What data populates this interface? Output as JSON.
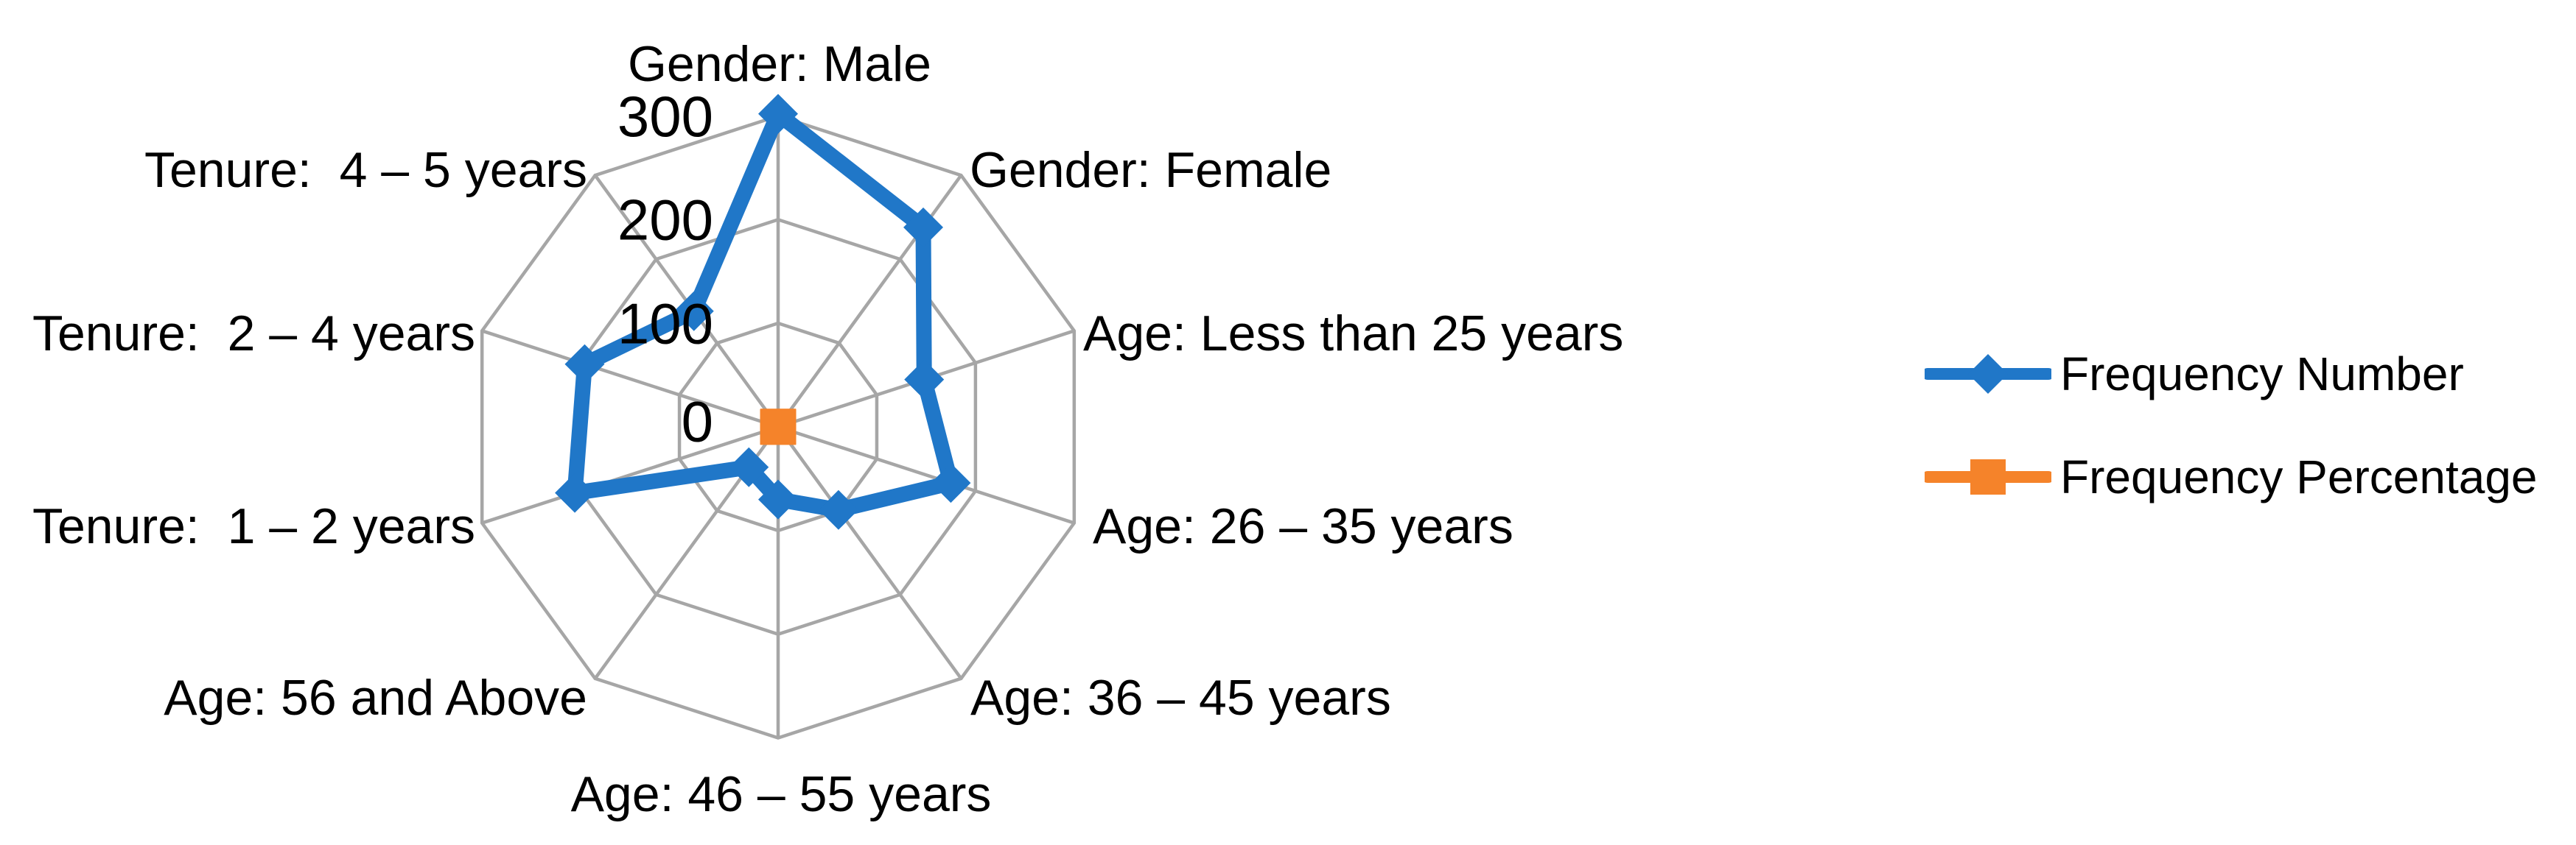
{
  "chart_data": {
    "type": "radar",
    "title": "",
    "categories": [
      "Gender: Male",
      "Gender: Female",
      "Age: Less than 25 years",
      "Age: 26 – 35 years",
      "Age: 36 – 45 years",
      "Age: 46 – 55 years",
      "Age: 56 and Above",
      "Tenure:  1 – 2 years",
      "Tenure:  2 – 4 years",
      "Tenure:  4 – 5 years"
    ],
    "series": [
      {
        "name": "Frequency Number",
        "marker": "diamond",
        "color": "#2077C8",
        "values": [
          302,
          238,
          148,
          175,
          99,
          70,
          48,
          206,
          196,
          138
        ]
      },
      {
        "name": "Frequency Percentage",
        "marker": "square",
        "color": "#F5832A",
        "values": [
          0.559,
          0.441,
          0.274,
          0.324,
          0.183,
          0.13,
          0.089,
          0.381,
          0.363,
          0.256
        ]
      }
    ],
    "yticks": [
      0,
      100,
      200,
      300
    ],
    "ylim": [
      0,
      300
    ],
    "grid": true,
    "grid_color": "#A6A6A6",
    "text_color": "#000000",
    "background": "#FFFFFF",
    "legend_position": "right"
  }
}
